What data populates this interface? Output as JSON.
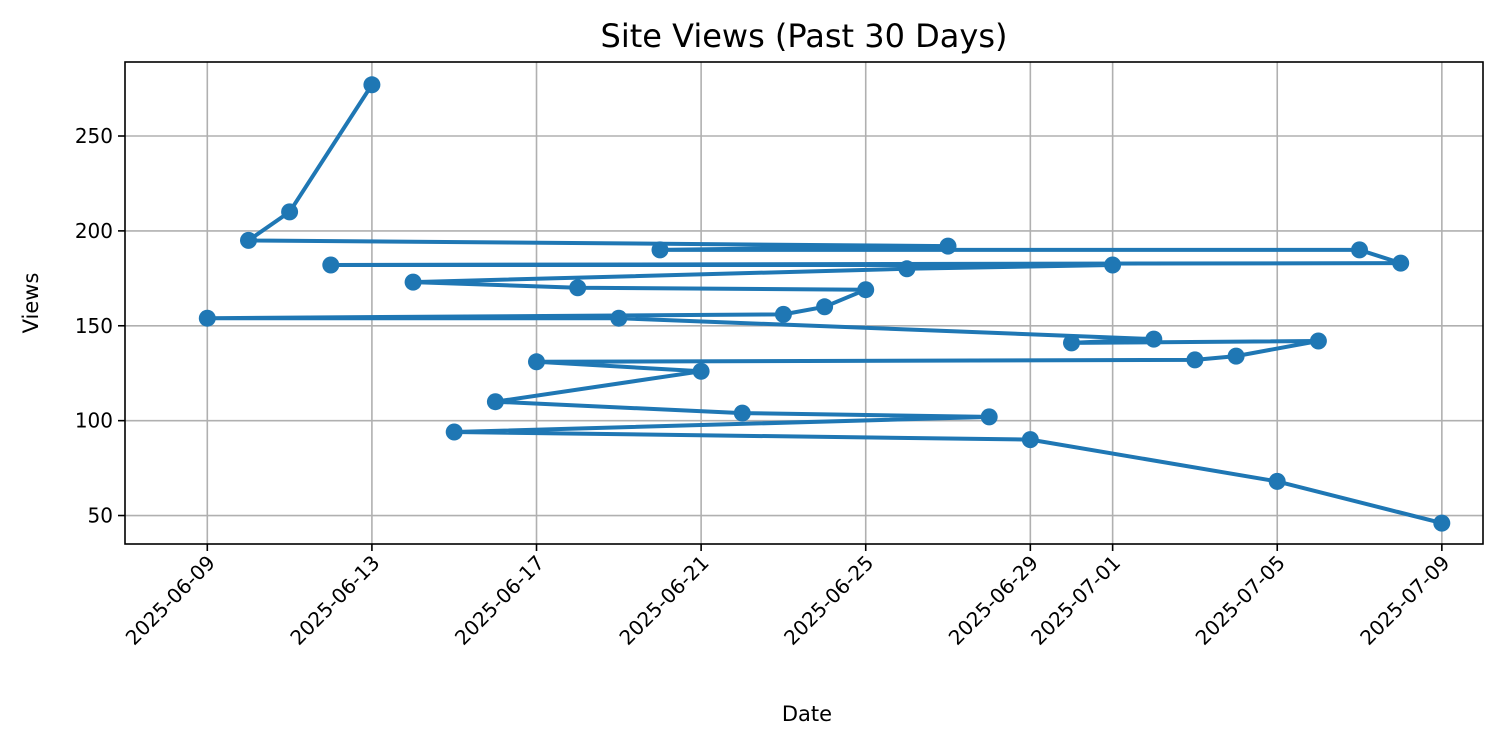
{
  "chart_data": {
    "type": "line",
    "title": "Site Views (Past 30 Days)",
    "xlabel": "Date",
    "ylabel": "Views",
    "x_ticks": [
      "2025-06-09",
      "2025-06-13",
      "2025-06-17",
      "2025-06-21",
      "2025-06-25",
      "2025-06-29",
      "2025-07-01",
      "2025-07-05",
      "2025-07-09"
    ],
    "y_ticks": [
      50,
      100,
      150,
      200,
      250
    ],
    "xlim": [
      "2025-06-07",
      "2025-07-10"
    ],
    "ylim": [
      35,
      289
    ],
    "grid": true,
    "color": "#1f77b4",
    "series": [
      {
        "points": [
          {
            "x": "2025-06-13",
            "y": 277
          },
          {
            "x": "2025-06-11",
            "y": 210
          },
          {
            "x": "2025-06-10",
            "y": 195
          },
          {
            "x": "2025-06-27",
            "y": 192
          },
          {
            "x": "2025-06-20",
            "y": 190
          },
          {
            "x": "2025-07-07",
            "y": 190
          },
          {
            "x": "2025-07-08",
            "y": 183
          },
          {
            "x": "2025-06-12",
            "y": 182
          },
          {
            "x": "2025-07-01",
            "y": 182
          },
          {
            "x": "2025-06-26",
            "y": 180
          },
          {
            "x": "2025-06-14",
            "y": 173
          },
          {
            "x": "2025-06-18",
            "y": 170
          },
          {
            "x": "2025-06-25",
            "y": 169
          },
          {
            "x": "2025-06-24",
            "y": 160
          },
          {
            "x": "2025-06-23",
            "y": 156
          },
          {
            "x": "2025-06-09",
            "y": 154
          },
          {
            "x": "2025-06-19",
            "y": 154
          },
          {
            "x": "2025-07-02",
            "y": 143
          },
          {
            "x": "2025-06-30",
            "y": 141
          },
          {
            "x": "2025-07-06",
            "y": 142
          },
          {
            "x": "2025-07-04",
            "y": 134
          },
          {
            "x": "2025-07-03",
            "y": 132
          },
          {
            "x": "2025-06-17",
            "y": 131
          },
          {
            "x": "2025-06-21",
            "y": 126
          },
          {
            "x": "2025-06-16",
            "y": 110
          },
          {
            "x": "2025-06-22",
            "y": 104
          },
          {
            "x": "2025-06-28",
            "y": 102
          },
          {
            "x": "2025-06-15",
            "y": 94
          },
          {
            "x": "2025-06-29",
            "y": 90
          },
          {
            "x": "2025-07-05",
            "y": 68
          },
          {
            "x": "2025-07-09",
            "y": 46
          }
        ]
      }
    ]
  }
}
